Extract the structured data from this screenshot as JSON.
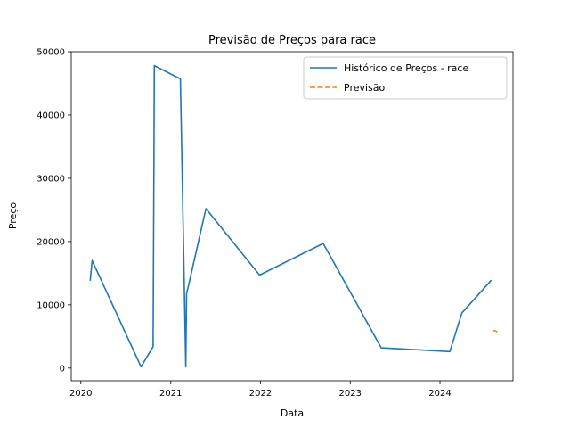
{
  "chart_data": {
    "type": "line",
    "title": "Previsão de Preços para race",
    "xlabel": "Data",
    "ylabel": "Preço",
    "x_axis_type": "date",
    "xlim": [
      "2019-11-23",
      "2024-10-24"
    ],
    "ylim": [
      -2000,
      50000
    ],
    "x_ticks": [
      {
        "date": "2020-01-01",
        "label": "2020"
      },
      {
        "date": "2021-01-01",
        "label": "2021"
      },
      {
        "date": "2022-01-01",
        "label": "2022"
      },
      {
        "date": "2023-01-01",
        "label": "2023"
      },
      {
        "date": "2024-01-01",
        "label": "2024"
      }
    ],
    "y_ticks": [
      0,
      10000,
      20000,
      30000,
      40000,
      50000
    ],
    "grid": false,
    "legend_position": "top-right",
    "series": [
      {
        "name": "Histórico de Preços - race",
        "color": "#1f77b4",
        "style": "solid",
        "points": [
          {
            "x": "2020-02-08",
            "y": 13800
          },
          {
            "x": "2020-02-16",
            "y": 17000
          },
          {
            "x": "2020-09-02",
            "y": 200
          },
          {
            "x": "2020-10-21",
            "y": 3400
          },
          {
            "x": "2020-10-26",
            "y": 47800
          },
          {
            "x": "2021-02-09",
            "y": 45700
          },
          {
            "x": "2021-03-03",
            "y": 200
          },
          {
            "x": "2021-03-06",
            "y": 11700
          },
          {
            "x": "2021-05-24",
            "y": 25200
          },
          {
            "x": "2021-12-28",
            "y": 14700
          },
          {
            "x": "2022-09-13",
            "y": 19700
          },
          {
            "x": "2023-05-07",
            "y": 3200
          },
          {
            "x": "2024-02-10",
            "y": 2600
          },
          {
            "x": "2024-03-30",
            "y": 8700
          },
          {
            "x": "2024-07-28",
            "y": 13900
          }
        ]
      },
      {
        "name": "Previsão",
        "color": "#ff7f0e",
        "style": "dashed",
        "points": [
          {
            "x": "2024-08-01",
            "y": 6000
          },
          {
            "x": "2024-08-26",
            "y": 5700
          }
        ]
      }
    ]
  }
}
